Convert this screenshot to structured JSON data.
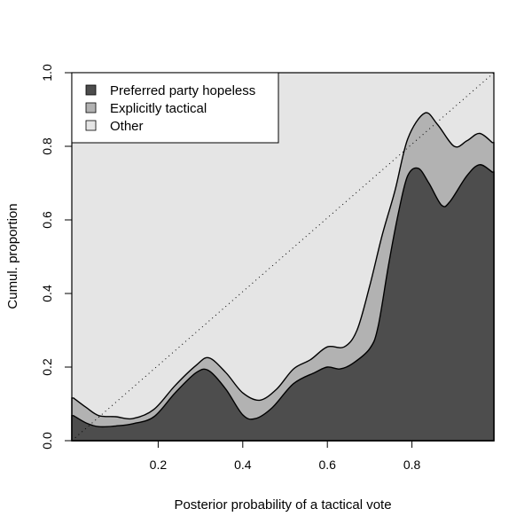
{
  "chart_data": {
    "type": "area",
    "title": "",
    "xlabel": "Posterior probability of a tactical vote",
    "ylabel": "Cumul. proportion",
    "xlim": [
      0.0,
      0.99
    ],
    "ylim": [
      0.0,
      1.0
    ],
    "x_ticks": [
      "0.2",
      "0.4",
      "0.6",
      "0.8"
    ],
    "x_tick_values": [
      0.2,
      0.4,
      0.6,
      0.8
    ],
    "y_ticks": [
      "0.0",
      "0.2",
      "0.4",
      "0.6",
      "0.8",
      "1.0"
    ],
    "y_tick_values": [
      0.0,
      0.2,
      0.4,
      0.6,
      0.8,
      1.0
    ],
    "grid": false,
    "legend_position": "top-left",
    "reference_line": {
      "style": "dotted",
      "from": [
        0.0,
        0.0
      ],
      "to": [
        1.0,
        1.0
      ]
    },
    "stacked": true,
    "series": [
      {
        "name": "Preferred party hopeless",
        "color": "#4d4d4d",
        "points": [
          [
            0.0,
            0.068
          ],
          [
            0.03,
            0.048
          ],
          [
            0.06,
            0.038
          ],
          [
            0.1,
            0.04
          ],
          [
            0.14,
            0.046
          ],
          [
            0.19,
            0.065
          ],
          [
            0.24,
            0.13
          ],
          [
            0.29,
            0.185
          ],
          [
            0.32,
            0.19
          ],
          [
            0.36,
            0.14
          ],
          [
            0.4,
            0.07
          ],
          [
            0.43,
            0.06
          ],
          [
            0.47,
            0.09
          ],
          [
            0.52,
            0.155
          ],
          [
            0.57,
            0.185
          ],
          [
            0.6,
            0.2
          ],
          [
            0.63,
            0.195
          ],
          [
            0.66,
            0.21
          ],
          [
            0.7,
            0.25
          ],
          [
            0.72,
            0.31
          ],
          [
            0.745,
            0.48
          ],
          [
            0.77,
            0.63
          ],
          [
            0.79,
            0.72
          ],
          [
            0.815,
            0.74
          ],
          [
            0.84,
            0.7
          ],
          [
            0.87,
            0.64
          ],
          [
            0.89,
            0.65
          ],
          [
            0.93,
            0.72
          ],
          [
            0.96,
            0.75
          ],
          [
            0.99,
            0.73
          ]
        ]
      },
      {
        "name": "Explicitly tactical",
        "color": "#b2b2b2",
        "upper_points": [
          [
            0.0,
            0.116
          ],
          [
            0.03,
            0.09
          ],
          [
            0.06,
            0.068
          ],
          [
            0.1,
            0.065
          ],
          [
            0.14,
            0.06
          ],
          [
            0.19,
            0.085
          ],
          [
            0.24,
            0.15
          ],
          [
            0.29,
            0.205
          ],
          [
            0.32,
            0.225
          ],
          [
            0.36,
            0.185
          ],
          [
            0.4,
            0.13
          ],
          [
            0.44,
            0.11
          ],
          [
            0.48,
            0.14
          ],
          [
            0.52,
            0.195
          ],
          [
            0.56,
            0.22
          ],
          [
            0.6,
            0.255
          ],
          [
            0.64,
            0.255
          ],
          [
            0.67,
            0.3
          ],
          [
            0.7,
            0.42
          ],
          [
            0.73,
            0.56
          ],
          [
            0.76,
            0.68
          ],
          [
            0.79,
            0.82
          ],
          [
            0.83,
            0.89
          ],
          [
            0.86,
            0.86
          ],
          [
            0.9,
            0.8
          ],
          [
            0.93,
            0.815
          ],
          [
            0.96,
            0.835
          ],
          [
            0.99,
            0.81
          ]
        ]
      },
      {
        "name": "Other",
        "color": "#e5e5e5",
        "upper_value": 1.0
      }
    ]
  },
  "legend": {
    "items": [
      {
        "label": "Preferred party hopeless",
        "color": "#4d4d4d"
      },
      {
        "label": "Explicitly tactical",
        "color": "#b2b2b2"
      },
      {
        "label": "Other",
        "color": "#e5e5e5"
      }
    ]
  }
}
